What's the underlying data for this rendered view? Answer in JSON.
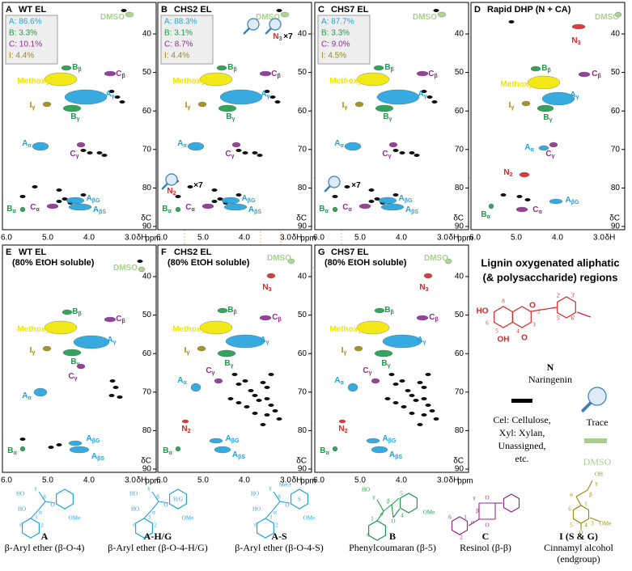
{
  "axis": {
    "xticks": [
      "6.0",
      "5.0",
      "4.0",
      "3.0"
    ],
    "xlabel": "δH",
    "xunit": "ppm",
    "yticks": [
      "40",
      "50",
      "60",
      "70",
      "80",
      "90"
    ],
    "ylabel": "δC"
  },
  "panels": [
    {
      "letter": "A",
      "title": "WT EL",
      "stats": [
        {
          "text": "A: 86.6%",
          "color": "#22a3dc"
        },
        {
          "text": "B: 3.3%",
          "color": "#1e9a4c"
        },
        {
          "text": "C: 10.1%",
          "color": "#8c2d8e"
        },
        {
          "text": "I: 4.4%",
          "color": "#9c8a0c"
        }
      ],
      "labels": [
        {
          "text": "DMSO",
          "color": "#a8d08d"
        },
        {
          "text": "B",
          "sub": "β",
          "color": "#1e9a4c"
        },
        {
          "text": "C",
          "sub": "β",
          "color": "#8c2d8e"
        },
        {
          "text": "Methoxyl",
          "color": "#f2e600"
        },
        {
          "text": "A",
          "sub": "γ",
          "color": "#22a3dc"
        },
        {
          "text": "I",
          "sub": "γ",
          "color": "#9c8a0c"
        },
        {
          "text": "B",
          "sub": "γ",
          "color": "#1e9a4c"
        },
        {
          "text": "A",
          "sub": "α",
          "color": "#22a3dc"
        },
        {
          "text": "C",
          "sub": "γ",
          "color": "#8c2d8e"
        },
        {
          "text": "A",
          "sub": "βG",
          "color": "#22a3dc"
        },
        {
          "text": "C",
          "sub": "α",
          "color": "#8c2d8e"
        },
        {
          "text": "A",
          "sub": "βS",
          "color": "#22a3dc"
        },
        {
          "text": "B",
          "sub": "α",
          "color": "#1e9a4c"
        }
      ]
    },
    {
      "letter": "B",
      "title": "CHS2 EL",
      "stats": [
        {
          "text": "A: 88.3%",
          "color": "#22a3dc"
        },
        {
          "text": "B: 3.1%",
          "color": "#1e9a4c"
        },
        {
          "text": "C: 8.7%",
          "color": "#8c2d8e"
        },
        {
          "text": "I: 4.4%",
          "color": "#9c8a0c"
        }
      ],
      "labels": [
        {
          "text": "DMSO",
          "color": "#a8d08d"
        },
        {
          "text": "B",
          "sub": "β",
          "color": "#1e9a4c"
        },
        {
          "text": "C",
          "sub": "β",
          "color": "#8c2d8e"
        },
        {
          "text": "Methoxyl",
          "color": "#f2e600"
        },
        {
          "text": "A",
          "sub": "γ",
          "color": "#22a3dc"
        },
        {
          "text": "I",
          "sub": "γ",
          "color": "#9c8a0c"
        },
        {
          "text": "B",
          "sub": "γ",
          "color": "#1e9a4c"
        },
        {
          "text": "A",
          "sub": "α",
          "color": "#22a3dc"
        },
        {
          "text": "C",
          "sub": "γ",
          "color": "#8c2d8e"
        },
        {
          "text": "A",
          "sub": "βG",
          "color": "#22a3dc"
        },
        {
          "text": "C",
          "sub": "α",
          "color": "#8c2d8e"
        },
        {
          "text": "A",
          "sub": "βS",
          "color": "#22a3dc"
        },
        {
          "text": "B",
          "sub": "α",
          "color": "#1e9a4c"
        },
        {
          "text": "N",
          "sub": "3",
          "color": "#d62828"
        },
        {
          "text": "×7",
          "color": "#000000"
        },
        {
          "text": "N",
          "sub": "2",
          "color": "#d62828"
        },
        {
          "text": "×7",
          "color": "#000000"
        }
      ]
    },
    {
      "letter": "C",
      "title": "CHS7 EL",
      "stats": [
        {
          "text": "A: 87.7%",
          "color": "#22a3dc"
        },
        {
          "text": "B: 3.3%",
          "color": "#1e9a4c"
        },
        {
          "text": "C: 9.0%",
          "color": "#8c2d8e"
        },
        {
          "text": "I: 4.5%",
          "color": "#9c8a0c"
        }
      ],
      "labels": [
        {
          "text": "DMSO",
          "color": "#a8d08d"
        },
        {
          "text": "B",
          "sub": "β",
          "color": "#1e9a4c"
        },
        {
          "text": "C",
          "sub": "β",
          "color": "#8c2d8e"
        },
        {
          "text": "Methoxyl",
          "color": "#f2e600"
        },
        {
          "text": "A",
          "sub": "γ",
          "color": "#22a3dc"
        },
        {
          "text": "I",
          "sub": "γ",
          "color": "#9c8a0c"
        },
        {
          "text": "B",
          "sub": "γ",
          "color": "#1e9a4c"
        },
        {
          "text": "A",
          "sub": "α",
          "color": "#22a3dc"
        },
        {
          "text": "C",
          "sub": "γ",
          "color": "#8c2d8e"
        },
        {
          "text": "A",
          "sub": "βG",
          "color": "#22a3dc"
        },
        {
          "text": "C",
          "sub": "α",
          "color": "#8c2d8e"
        },
        {
          "text": "A",
          "sub": "βS",
          "color": "#22a3dc"
        },
        {
          "text": "B",
          "sub": "α",
          "color": "#1e9a4c"
        },
        {
          "text": "×7",
          "color": "#000000"
        }
      ]
    },
    {
      "letter": "D",
      "title": "Rapid DHP (N + CA)",
      "labels": [
        {
          "text": "DMSO",
          "color": "#a8d08d"
        },
        {
          "text": "N",
          "sub": "3",
          "color": "#d62828"
        },
        {
          "text": "B",
          "sub": "β",
          "color": "#1e9a4c"
        },
        {
          "text": "C",
          "sub": "β",
          "color": "#8c2d8e"
        },
        {
          "text": "Methoxyl",
          "color": "#f2e600"
        },
        {
          "text": "A",
          "sub": "γ",
          "color": "#22a3dc"
        },
        {
          "text": "I",
          "sub": "γ",
          "color": "#9c8a0c"
        },
        {
          "text": "B",
          "sub": "γ",
          "color": "#1e9a4c"
        },
        {
          "text": "A",
          "sub": "α",
          "color": "#22a3dc"
        },
        {
          "text": "C",
          "sub": "γ",
          "color": "#8c2d8e"
        },
        {
          "text": "N",
          "sub": "2",
          "color": "#d62828"
        },
        {
          "text": "A",
          "sub": "βG",
          "color": "#22a3dc"
        },
        {
          "text": "C",
          "sub": "α",
          "color": "#8c2d8e"
        },
        {
          "text": "B",
          "sub": "α",
          "color": "#1e9a4c"
        }
      ]
    },
    {
      "letter": "E",
      "title": "WT EL",
      "subtitle": "(80% EtOH soluble)",
      "labels": [
        {
          "text": "DMSO",
          "color": "#a8d08d"
        },
        {
          "text": "B",
          "sub": "β",
          "color": "#1e9a4c"
        },
        {
          "text": "C",
          "sub": "β",
          "color": "#8c2d8e"
        },
        {
          "text": "Methoxyl",
          "color": "#f2e600"
        },
        {
          "text": "A",
          "sub": "γ",
          "color": "#22a3dc"
        },
        {
          "text": "I",
          "sub": "γ",
          "color": "#9c8a0c"
        },
        {
          "text": "B",
          "sub": "γ",
          "color": "#1e9a4c"
        },
        {
          "text": "A",
          "sub": "α",
          "color": "#22a3dc"
        },
        {
          "text": "C",
          "sub": "γ",
          "color": "#8c2d8e"
        },
        {
          "text": "A",
          "sub": "βG",
          "color": "#22a3dc"
        },
        {
          "text": "A",
          "sub": "βS",
          "color": "#22a3dc"
        },
        {
          "text": "B",
          "sub": "α",
          "color": "#1e9a4c"
        }
      ]
    },
    {
      "letter": "F",
      "title": "CHS2 EL",
      "subtitle": "(80% EtOH soluble)",
      "labels": [
        {
          "text": "DMSO",
          "color": "#a8d08d"
        },
        {
          "text": "N",
          "sub": "3",
          "color": "#d62828"
        },
        {
          "text": "B",
          "sub": "β",
          "color": "#1e9a4c"
        },
        {
          "text": "C",
          "sub": "β",
          "color": "#8c2d8e"
        },
        {
          "text": "Methoxyl",
          "color": "#f2e600"
        },
        {
          "text": "A",
          "sub": "γ",
          "color": "#22a3dc"
        },
        {
          "text": "I",
          "sub": "γ",
          "color": "#9c8a0c"
        },
        {
          "text": "B",
          "sub": "γ",
          "color": "#1e9a4c"
        },
        {
          "text": "A",
          "sub": "α",
          "color": "#22a3dc"
        },
        {
          "text": "C",
          "sub": "γ",
          "color": "#8c2d8e"
        },
        {
          "text": "N",
          "sub": "2",
          "color": "#d62828"
        },
        {
          "text": "A",
          "sub": "βG",
          "color": "#22a3dc"
        },
        {
          "text": "A",
          "sub": "βS",
          "color": "#22a3dc"
        },
        {
          "text": "B",
          "sub": "α",
          "color": "#1e9a4c"
        }
      ]
    },
    {
      "letter": "G",
      "title": "CHS7 EL",
      "subtitle": "(80% EtOH soluble)",
      "labels": [
        {
          "text": "DMSO",
          "color": "#a8d08d"
        },
        {
          "text": "N",
          "sub": "3",
          "color": "#d62828"
        },
        {
          "text": "B",
          "sub": "β",
          "color": "#1e9a4c"
        },
        {
          "text": "C",
          "sub": "β",
          "color": "#8c2d8e"
        },
        {
          "text": "Methoxyl",
          "color": "#f2e600"
        },
        {
          "text": "A",
          "sub": "γ",
          "color": "#22a3dc"
        },
        {
          "text": "I",
          "sub": "γ",
          "color": "#9c8a0c"
        },
        {
          "text": "B",
          "sub": "γ",
          "color": "#1e9a4c"
        },
        {
          "text": "A",
          "sub": "α",
          "color": "#22a3dc"
        },
        {
          "text": "C",
          "sub": "γ",
          "color": "#8c2d8e"
        },
        {
          "text": "N",
          "sub": "2",
          "color": "#d62828"
        },
        {
          "text": "A",
          "sub": "βG",
          "color": "#22a3dc"
        },
        {
          "text": "A",
          "sub": "βS",
          "color": "#22a3dc"
        },
        {
          "text": "B",
          "sub": "α",
          "color": "#1e9a4c"
        }
      ]
    }
  ],
  "side": {
    "title": [
      "Lignin oxygenated aliphatic",
      "(& polysaccharide) regions"
    ],
    "naringenin": {
      "letter": "N",
      "name": "Naringenin",
      "atoms": [
        "HO",
        "OH",
        "O",
        "O",
        "8",
        "6",
        "5",
        "4",
        "3",
        "2",
        "2'",
        "3'",
        "5'",
        "6'"
      ]
    },
    "legend": {
      "black": [
        "Cel: Cellulose,",
        "Xyl: Xylan,",
        "Unassigned,",
        "etc."
      ],
      "trace": "Trace",
      "dmso": "DMSO"
    }
  },
  "structures": [
    {
      "letter": "A",
      "name": [
        "β-Aryl ether (β-O-4)"
      ],
      "color": "#22a3dc",
      "atoms": [
        "HO",
        "HO",
        "OMe",
        "O",
        "α",
        "β",
        "γ",
        "1",
        "2",
        "6"
      ]
    },
    {
      "letter": "A-H/G",
      "name": [
        "β-Aryl ether (β-O-4-H/G)"
      ],
      "color": "#22a3dc",
      "atoms": [
        "HO",
        "HO",
        "OMe",
        "O",
        "α",
        "β",
        "γ",
        "1",
        "2",
        "6",
        "H/G"
      ]
    },
    {
      "letter": "A-S",
      "name": [
        "β-Aryl ether (β-O-4-S)"
      ],
      "color": "#22a3dc",
      "atoms": [
        "HO",
        "HO",
        "OMe",
        "O",
        "α",
        "β",
        "γ",
        "1",
        "2",
        "6",
        "S",
        "MeO"
      ]
    },
    {
      "letter": "B",
      "name": [
        "Phenylcoumaran (β-5)"
      ],
      "color": "#1e9a4c",
      "atoms": [
        "HO",
        "O",
        "OMe",
        "γ",
        "β",
        "α",
        "1",
        "4",
        "5",
        "6"
      ]
    },
    {
      "letter": "C",
      "name": [
        "Resinol (β-β)"
      ],
      "color": "#8c2d8e",
      "atoms": [
        "O",
        "O",
        "γ",
        "β",
        "α",
        "1",
        "2",
        "6"
      ]
    },
    {
      "letter": "I (S & G)",
      "name": [
        "Cinnamyl alcohol",
        "(endgroup)"
      ],
      "color": "#9c8a0c",
      "atoms": [
        "OH",
        "γ",
        "β",
        "α",
        "OMe",
        "O",
        "1",
        "3",
        "4",
        "5",
        "6"
      ]
    }
  ]
}
